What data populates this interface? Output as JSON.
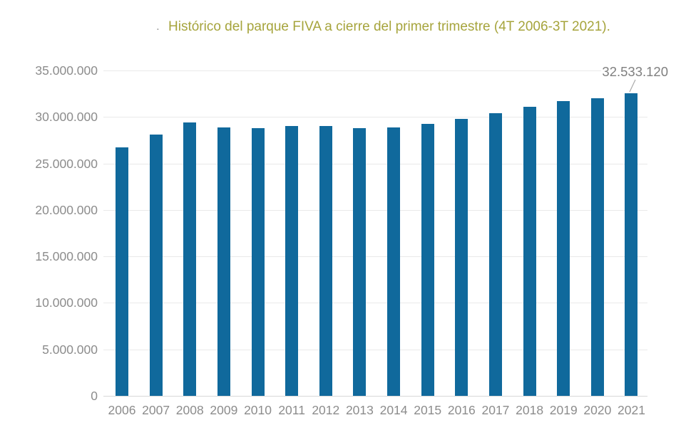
{
  "title": {
    "prefix_dot": ".",
    "text": "Histórico del parque FIVA a cierre del primer trimestre (4T 2006-3T 2021)."
  },
  "annotation": {
    "label": "32.533.120",
    "target_category": "2021"
  },
  "colors": {
    "bar": "#10699c",
    "title": "#a6a43c",
    "axis_text": "#8c8c8c",
    "gridline": "#e9e9e9",
    "axis_line": "#d8d8d8",
    "annotation_text": "#7f7f7f",
    "leader_line": "#a9a9a9"
  },
  "chart_data": {
    "type": "bar",
    "title": "Histórico del parque FIVA a cierre del primer trimestre (4T 2006-3T 2021).",
    "categories": [
      "2006",
      "2007",
      "2008",
      "2009",
      "2010",
      "2011",
      "2012",
      "2013",
      "2014",
      "2015",
      "2016",
      "2017",
      "2018",
      "2019",
      "2020",
      "2021"
    ],
    "values": [
      26700000,
      28100000,
      29400000,
      28900000,
      28800000,
      29000000,
      29000000,
      28800000,
      28850000,
      29250000,
      29750000,
      30400000,
      31100000,
      31700000,
      32000000,
      32533120
    ],
    "xlabel": "",
    "ylabel": "",
    "ylim": [
      0,
      35000000
    ],
    "ytick_step": 5000000,
    "ytick_labels": [
      "0",
      "5.000.000",
      "10.000.000",
      "15.000.000",
      "20.000.000",
      "25.000.000",
      "30.000.000",
      "35.000.000"
    ],
    "grid": true,
    "legend": false,
    "data_labels": [
      {
        "category": "2021",
        "label": "32.533.120"
      }
    ]
  }
}
